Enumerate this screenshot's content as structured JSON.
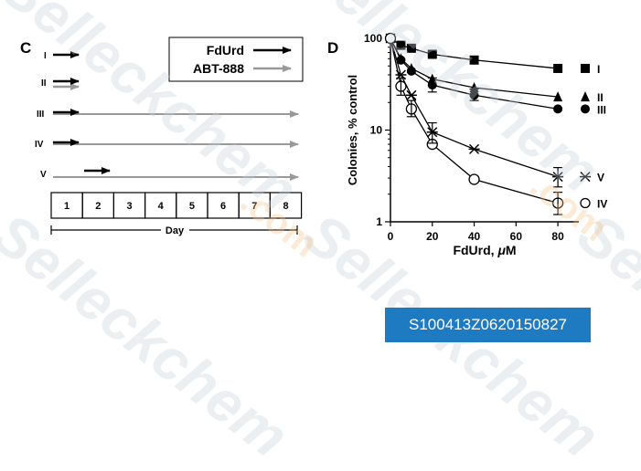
{
  "watermark": {
    "text": "Selleckchem",
    "suffix": ".com"
  },
  "image_code": "S100413Z0620150827",
  "panel_c": {
    "label": "C",
    "legend": [
      {
        "name": "FdUrd",
        "color": "#000000"
      },
      {
        "name": "ABT-888",
        "color": "#999999"
      }
    ],
    "schedules": [
      {
        "id": "I",
        "fdurd": true,
        "abt": false,
        "abt_to_end": false
      },
      {
        "id": "II",
        "fdurd": true,
        "abt": true,
        "abt_to_end": false
      },
      {
        "id": "III",
        "fdurd": true,
        "abt": true,
        "abt_to_end": true
      },
      {
        "id": "IV",
        "fdurd": true,
        "abt": true,
        "abt_to_end": true
      },
      {
        "id": "V",
        "fdurd": true,
        "abt": true,
        "abt_to_end": true
      }
    ],
    "days": [
      "1",
      "2",
      "3",
      "4",
      "5",
      "6",
      "7",
      "8"
    ],
    "day_label": "Day"
  },
  "chart_data": {
    "type": "line",
    "panel_label": "D",
    "xlabel": "FdUrd, μM",
    "ylabel": "Colonies, % control",
    "xlim": [
      0,
      90
    ],
    "ylim": [
      1,
      100
    ],
    "yscale": "log",
    "xticks": [
      0,
      20,
      40,
      60,
      80
    ],
    "yticks": [
      1,
      10,
      100
    ],
    "grid": false,
    "legend_position": "right, at line ends",
    "series": [
      {
        "name": "I",
        "marker": "square-filled",
        "x": [
          0,
          5,
          10,
          20,
          40,
          80
        ],
        "y": [
          100,
          84,
          78,
          67,
          58,
          47
        ]
      },
      {
        "name": "II",
        "marker": "triangle-filled",
        "x": [
          0,
          5,
          10,
          20,
          40,
          80
        ],
        "y": [
          100,
          60,
          47,
          36,
          29,
          23
        ]
      },
      {
        "name": "III",
        "marker": "circle-filled",
        "x": [
          0,
          5,
          10,
          20,
          40,
          80
        ],
        "y": [
          100,
          58,
          44,
          31,
          24,
          17
        ]
      },
      {
        "name": "V",
        "marker": "x",
        "x": [
          0,
          5,
          10,
          20,
          40,
          80
        ],
        "y": [
          100,
          40,
          24,
          9.5,
          6.2,
          3.1
        ]
      },
      {
        "name": "IV",
        "marker": "circle-open",
        "x": [
          0,
          5,
          10,
          20,
          40,
          80
        ],
        "y": [
          100,
          30,
          17,
          7,
          2.9,
          1.6
        ]
      }
    ]
  }
}
